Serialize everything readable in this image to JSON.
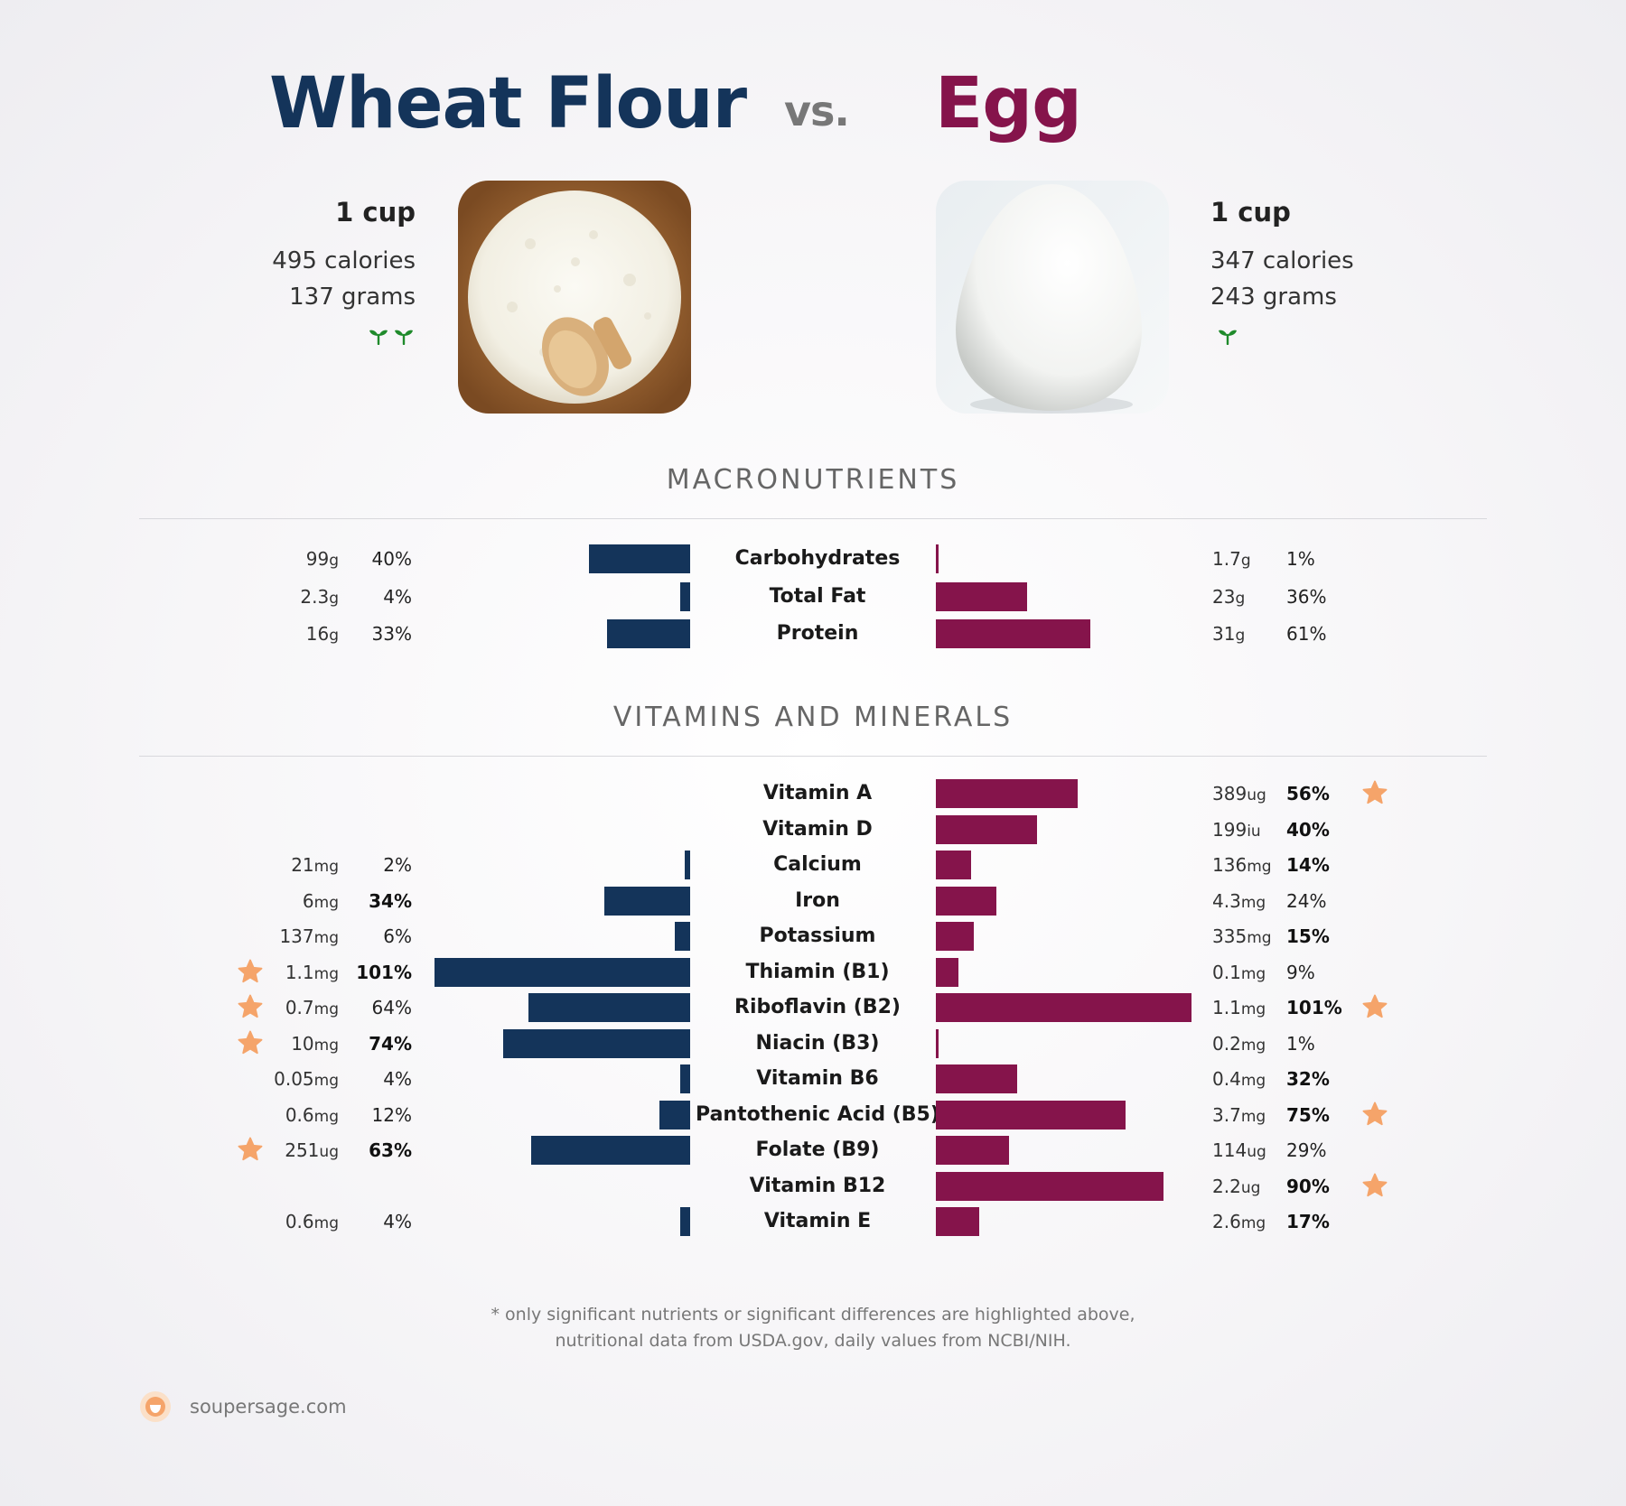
{
  "colors": {
    "left": "#14345a",
    "right": "#85144b",
    "star": "#f5a46a",
    "sprout": "#1f8a2b"
  },
  "header": {
    "left_title": "Wheat Flour",
    "vs": "vs.",
    "right_title": "Egg"
  },
  "left_food": {
    "serving": "1 cup",
    "calories": "495 calories",
    "grams": "137 grams",
    "sprouts": 2,
    "image_icon": "flour-bowl-photo"
  },
  "right_food": {
    "serving": "1 cup",
    "calories": "347 calories",
    "grams": "243 grams",
    "sprouts": 1,
    "image_icon": "egg-photo"
  },
  "sections": {
    "macros": "MACRONUTRIENTS",
    "vitamins": "VITAMINS AND MINERALS"
  },
  "footnote": {
    "line1": "* only significant nutrients or significant differences are highlighted above,",
    "line2": "nutritional data from USDA.gov, daily values from NCBI/NIH."
  },
  "brand": {
    "name": "soupersage.com",
    "icon": "soupersage-logo-icon"
  },
  "chart_data": {
    "type": "bar",
    "series": [
      {
        "name": "Wheat Flour"
      },
      {
        "name": "Egg"
      }
    ],
    "macros": [
      {
        "label": "Carbohydrates",
        "left": {
          "amount": "99",
          "unit": "g",
          "pct": "40%",
          "value": 40,
          "bold": false,
          "star": false
        },
        "right": {
          "amount": "1.7",
          "unit": "g",
          "pct": "1%",
          "value": 1,
          "bold": false,
          "star": false
        }
      },
      {
        "label": "Total Fat",
        "left": {
          "amount": "2.3",
          "unit": "g",
          "pct": "4%",
          "value": 4,
          "bold": false,
          "star": false
        },
        "right": {
          "amount": "23",
          "unit": "g",
          "pct": "36%",
          "value": 36,
          "bold": false,
          "star": false
        }
      },
      {
        "label": "Protein",
        "left": {
          "amount": "16",
          "unit": "g",
          "pct": "33%",
          "value": 33,
          "bold": false,
          "star": false
        },
        "right": {
          "amount": "31",
          "unit": "g",
          "pct": "61%",
          "value": 61,
          "bold": false,
          "star": false
        }
      }
    ],
    "vitamins": [
      {
        "label": "Vitamin A",
        "left": null,
        "right": {
          "amount": "389",
          "unit": "ug",
          "pct": "56%",
          "value": 56,
          "bold": true,
          "star": true
        }
      },
      {
        "label": "Vitamin D",
        "left": null,
        "right": {
          "amount": "199",
          "unit": "iu",
          "pct": "40%",
          "value": 40,
          "bold": true,
          "star": false
        }
      },
      {
        "label": "Calcium",
        "left": {
          "amount": "21",
          "unit": "mg",
          "pct": "2%",
          "value": 2,
          "bold": false,
          "star": false
        },
        "right": {
          "amount": "136",
          "unit": "mg",
          "pct": "14%",
          "value": 14,
          "bold": true,
          "star": false
        }
      },
      {
        "label": "Iron",
        "left": {
          "amount": "6",
          "unit": "mg",
          "pct": "34%",
          "value": 34,
          "bold": true,
          "star": false
        },
        "right": {
          "amount": "4.3",
          "unit": "mg",
          "pct": "24%",
          "value": 24,
          "bold": false,
          "star": false
        }
      },
      {
        "label": "Potassium",
        "left": {
          "amount": "137",
          "unit": "mg",
          "pct": "6%",
          "value": 6,
          "bold": false,
          "star": false
        },
        "right": {
          "amount": "335",
          "unit": "mg",
          "pct": "15%",
          "value": 15,
          "bold": true,
          "star": false
        }
      },
      {
        "label": "Thiamin (B1)",
        "left": {
          "amount": "1.1",
          "unit": "mg",
          "pct": "101%",
          "value": 101,
          "bold": true,
          "star": true
        },
        "right": {
          "amount": "0.1",
          "unit": "mg",
          "pct": "9%",
          "value": 9,
          "bold": false,
          "star": false
        }
      },
      {
        "label": "Riboflavin (B2)",
        "left": {
          "amount": "0.7",
          "unit": "mg",
          "pct": "64%",
          "value": 64,
          "bold": false,
          "star": true
        },
        "right": {
          "amount": "1.1",
          "unit": "mg",
          "pct": "101%",
          "value": 101,
          "bold": true,
          "star": true
        }
      },
      {
        "label": "Niacin (B3)",
        "left": {
          "amount": "10",
          "unit": "mg",
          "pct": "74%",
          "value": 74,
          "bold": true,
          "star": true
        },
        "right": {
          "amount": "0.2",
          "unit": "mg",
          "pct": "1%",
          "value": 1,
          "bold": false,
          "star": false
        }
      },
      {
        "label": "Vitamin B6",
        "left": {
          "amount": "0.05",
          "unit": "mg",
          "pct": "4%",
          "value": 4,
          "bold": false,
          "star": false
        },
        "right": {
          "amount": "0.4",
          "unit": "mg",
          "pct": "32%",
          "value": 32,
          "bold": true,
          "star": false
        }
      },
      {
        "label": "Pantothenic Acid (B5)",
        "left": {
          "amount": "0.6",
          "unit": "mg",
          "pct": "12%",
          "value": 12,
          "bold": false,
          "star": false
        },
        "right": {
          "amount": "3.7",
          "unit": "mg",
          "pct": "75%",
          "value": 75,
          "bold": true,
          "star": true
        }
      },
      {
        "label": "Folate (B9)",
        "left": {
          "amount": "251",
          "unit": "ug",
          "pct": "63%",
          "value": 63,
          "bold": true,
          "star": true
        },
        "right": {
          "amount": "114",
          "unit": "ug",
          "pct": "29%",
          "value": 29,
          "bold": false,
          "star": false
        }
      },
      {
        "label": "Vitamin B12",
        "left": null,
        "right": {
          "amount": "2.2",
          "unit": "ug",
          "pct": "90%",
          "value": 90,
          "bold": true,
          "star": true
        }
      },
      {
        "label": "Vitamin E",
        "left": {
          "amount": "0.6",
          "unit": "mg",
          "pct": "4%",
          "value": 4,
          "bold": false,
          "star": false
        },
        "right": {
          "amount": "2.6",
          "unit": "mg",
          "pct": "17%",
          "value": 17,
          "bold": true,
          "star": false
        }
      }
    ]
  }
}
